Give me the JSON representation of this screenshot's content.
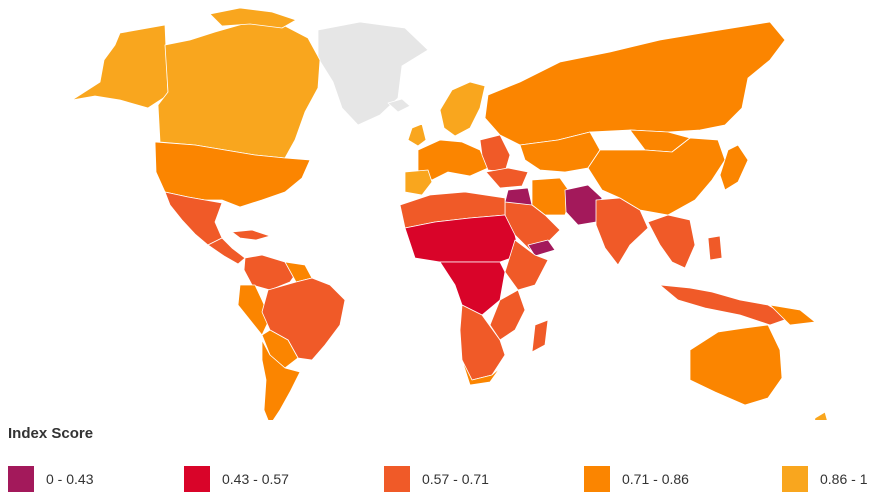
{
  "legend": {
    "title": "Index Score",
    "items": [
      {
        "label": "0 - 0.43",
        "color": "#a3195b"
      },
      {
        "label": "0.43 - 0.57",
        "color": "#d90429"
      },
      {
        "label": "0.57 - 0.71",
        "color": "#f05a28"
      },
      {
        "label": "0.71 - 0.86",
        "color": "#fb8500"
      },
      {
        "label": "0.86 - 1",
        "color": "#f9a61e"
      }
    ]
  },
  "colors": {
    "no_data": "#e6e6e6",
    "border": "#ffffff",
    "background": "#ffffff"
  }
}
